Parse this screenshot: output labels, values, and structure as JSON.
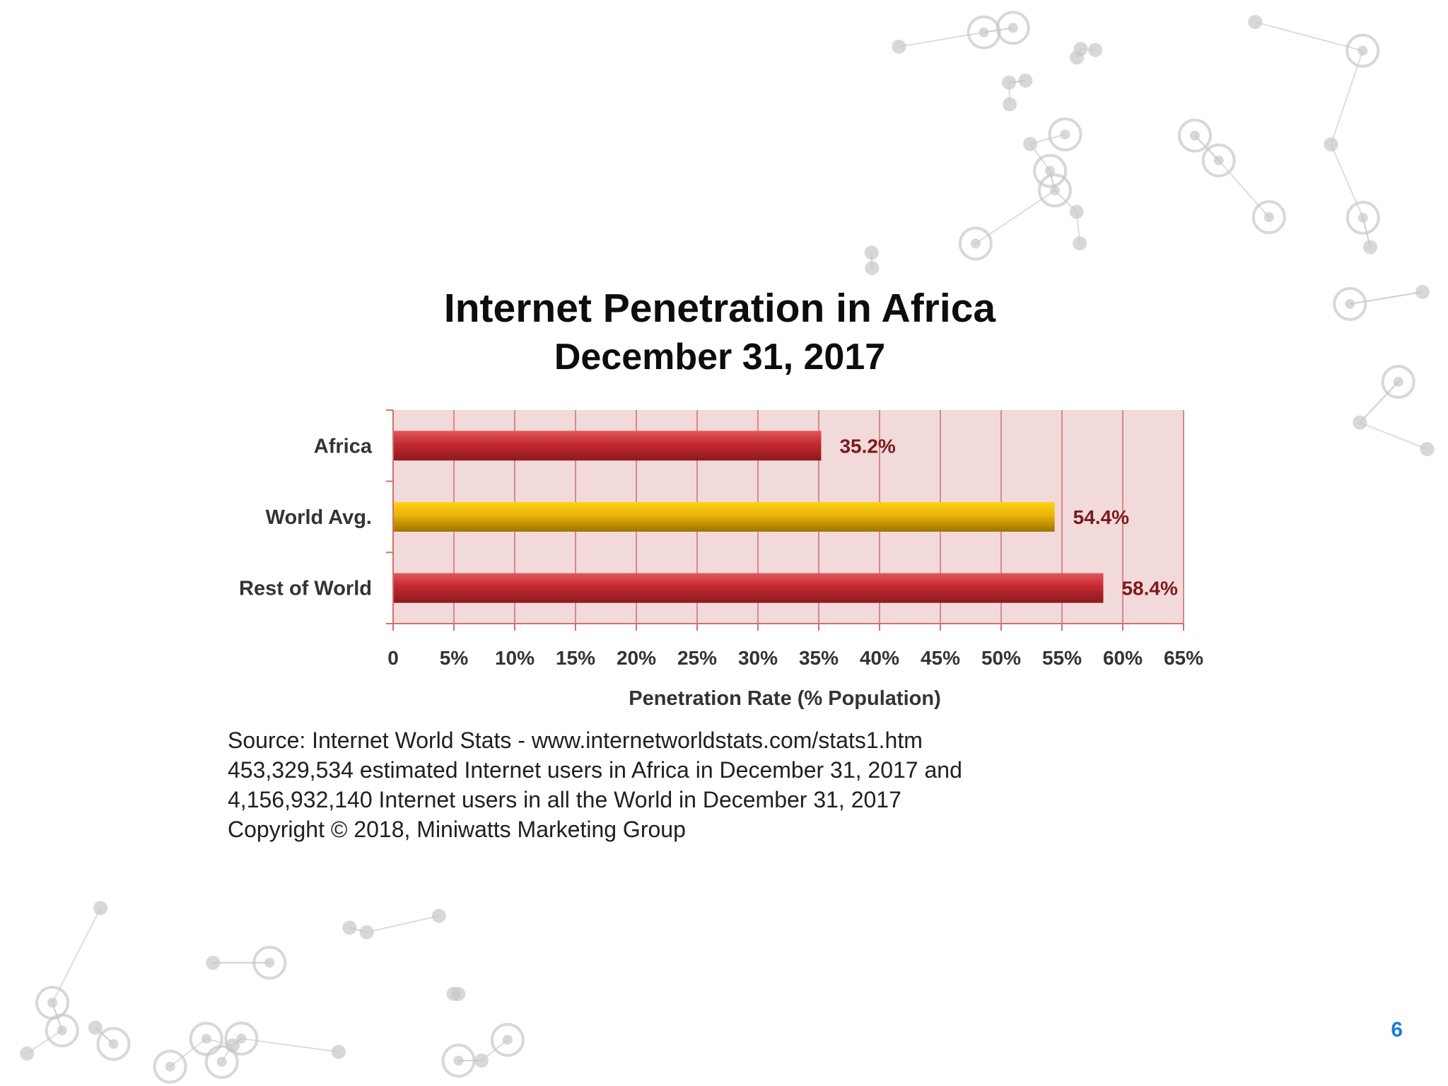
{
  "chart_data": {
    "type": "bar",
    "orientation": "horizontal",
    "title": "Internet Penetration in Africa",
    "subtitle": "December 31, 2017",
    "categories": [
      "Africa",
      "World Avg.",
      "Rest of World"
    ],
    "values": [
      35.2,
      54.4,
      58.4
    ],
    "data_labels": [
      "35.2%",
      "54.4%",
      "58.4%"
    ],
    "colors": [
      "#b3262c",
      "#e2a80a",
      "#b3262c"
    ],
    "xlabel": "Penetration Rate (% Population)",
    "ylabel": "",
    "xlim": [
      0,
      65
    ],
    "x_ticks": [
      0,
      5,
      10,
      15,
      20,
      25,
      30,
      35,
      40,
      45,
      50,
      55,
      60,
      65
    ],
    "x_tick_labels": [
      "0",
      "5%",
      "10%",
      "15%",
      "20%",
      "25%",
      "30%",
      "35%",
      "40%",
      "45%",
      "50%",
      "55%",
      "60%",
      "65%"
    ],
    "grid": true,
    "plot_background": "#f3dada",
    "legend": "none"
  },
  "source": {
    "lines": [
      "Source: Internet World Stats  -  www.internetworldstats.com/stats1.htm",
      "453,329,534 estimated Internet users in Africa in December 31, 2017 and",
      "4,156,932,140 Internet users in all the World in December 31, 2017",
      "Copyright © 2018, Miniwatts Marketing Group"
    ]
  },
  "page": {
    "number": "6"
  },
  "colors": {
    "page_number": "#1a7fd4",
    "decoration": "#c8c8c8"
  },
  "icons": {
    "decoration": "network-nodes-pattern"
  }
}
